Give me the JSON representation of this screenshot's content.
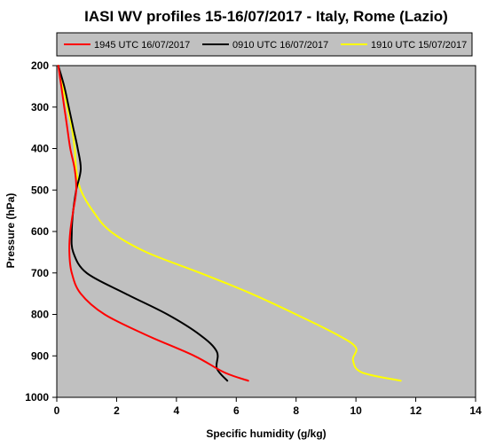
{
  "chart_data": {
    "type": "line",
    "title": "IASI WV profiles 15-16/07/2017  - Italy, Rome (Lazio)",
    "xlabel": "Specific humidity (g/kg)",
    "ylabel": "Pressure (hPa)",
    "xlim": [
      0,
      14
    ],
    "ylim": [
      200,
      1000
    ],
    "y_inverted": true,
    "xticks": [
      0,
      2,
      4,
      6,
      8,
      10,
      12,
      14
    ],
    "yticks": [
      200,
      300,
      400,
      500,
      600,
      700,
      800,
      900,
      1000
    ],
    "grid": false,
    "legend_position": "top",
    "plot_background": "#c0c0c0",
    "series": [
      {
        "name": "1945 UTC 16/07/2017",
        "color": "#ff0000",
        "points": [
          [
            0.05,
            200
          ],
          [
            0.15,
            250
          ],
          [
            0.25,
            300
          ],
          [
            0.35,
            350
          ],
          [
            0.45,
            400
          ],
          [
            0.6,
            450
          ],
          [
            0.65,
            500
          ],
          [
            0.55,
            550
          ],
          [
            0.45,
            600
          ],
          [
            0.42,
            650
          ],
          [
            0.5,
            700
          ],
          [
            0.8,
            750
          ],
          [
            1.6,
            800
          ],
          [
            3.0,
            850
          ],
          [
            4.6,
            900
          ],
          [
            5.6,
            940
          ],
          [
            6.4,
            960
          ]
        ]
      },
      {
        "name": "0910 UTC 16/07/2017",
        "color": "#000000",
        "points": [
          [
            0.05,
            200
          ],
          [
            0.25,
            250
          ],
          [
            0.4,
            300
          ],
          [
            0.55,
            350
          ],
          [
            0.7,
            400
          ],
          [
            0.8,
            450
          ],
          [
            0.65,
            500
          ],
          [
            0.55,
            550
          ],
          [
            0.5,
            600
          ],
          [
            0.55,
            650
          ],
          [
            1.0,
            700
          ],
          [
            2.3,
            750
          ],
          [
            3.7,
            800
          ],
          [
            4.8,
            850
          ],
          [
            5.35,
            890
          ],
          [
            5.35,
            930
          ],
          [
            5.7,
            960
          ]
        ]
      },
      {
        "name": "1910 UTC 15/07/2017",
        "color": "#ffff00",
        "points": [
          [
            0.05,
            200
          ],
          [
            0.2,
            250
          ],
          [
            0.35,
            300
          ],
          [
            0.5,
            350
          ],
          [
            0.6,
            400
          ],
          [
            0.65,
            450
          ],
          [
            0.8,
            500
          ],
          [
            1.2,
            550
          ],
          [
            1.8,
            600
          ],
          [
            3.0,
            650
          ],
          [
            4.8,
            700
          ],
          [
            6.5,
            750
          ],
          [
            8.0,
            800
          ],
          [
            9.4,
            850
          ],
          [
            10.0,
            880
          ],
          [
            9.9,
            910
          ],
          [
            10.2,
            940
          ],
          [
            11.5,
            960
          ]
        ]
      }
    ]
  }
}
